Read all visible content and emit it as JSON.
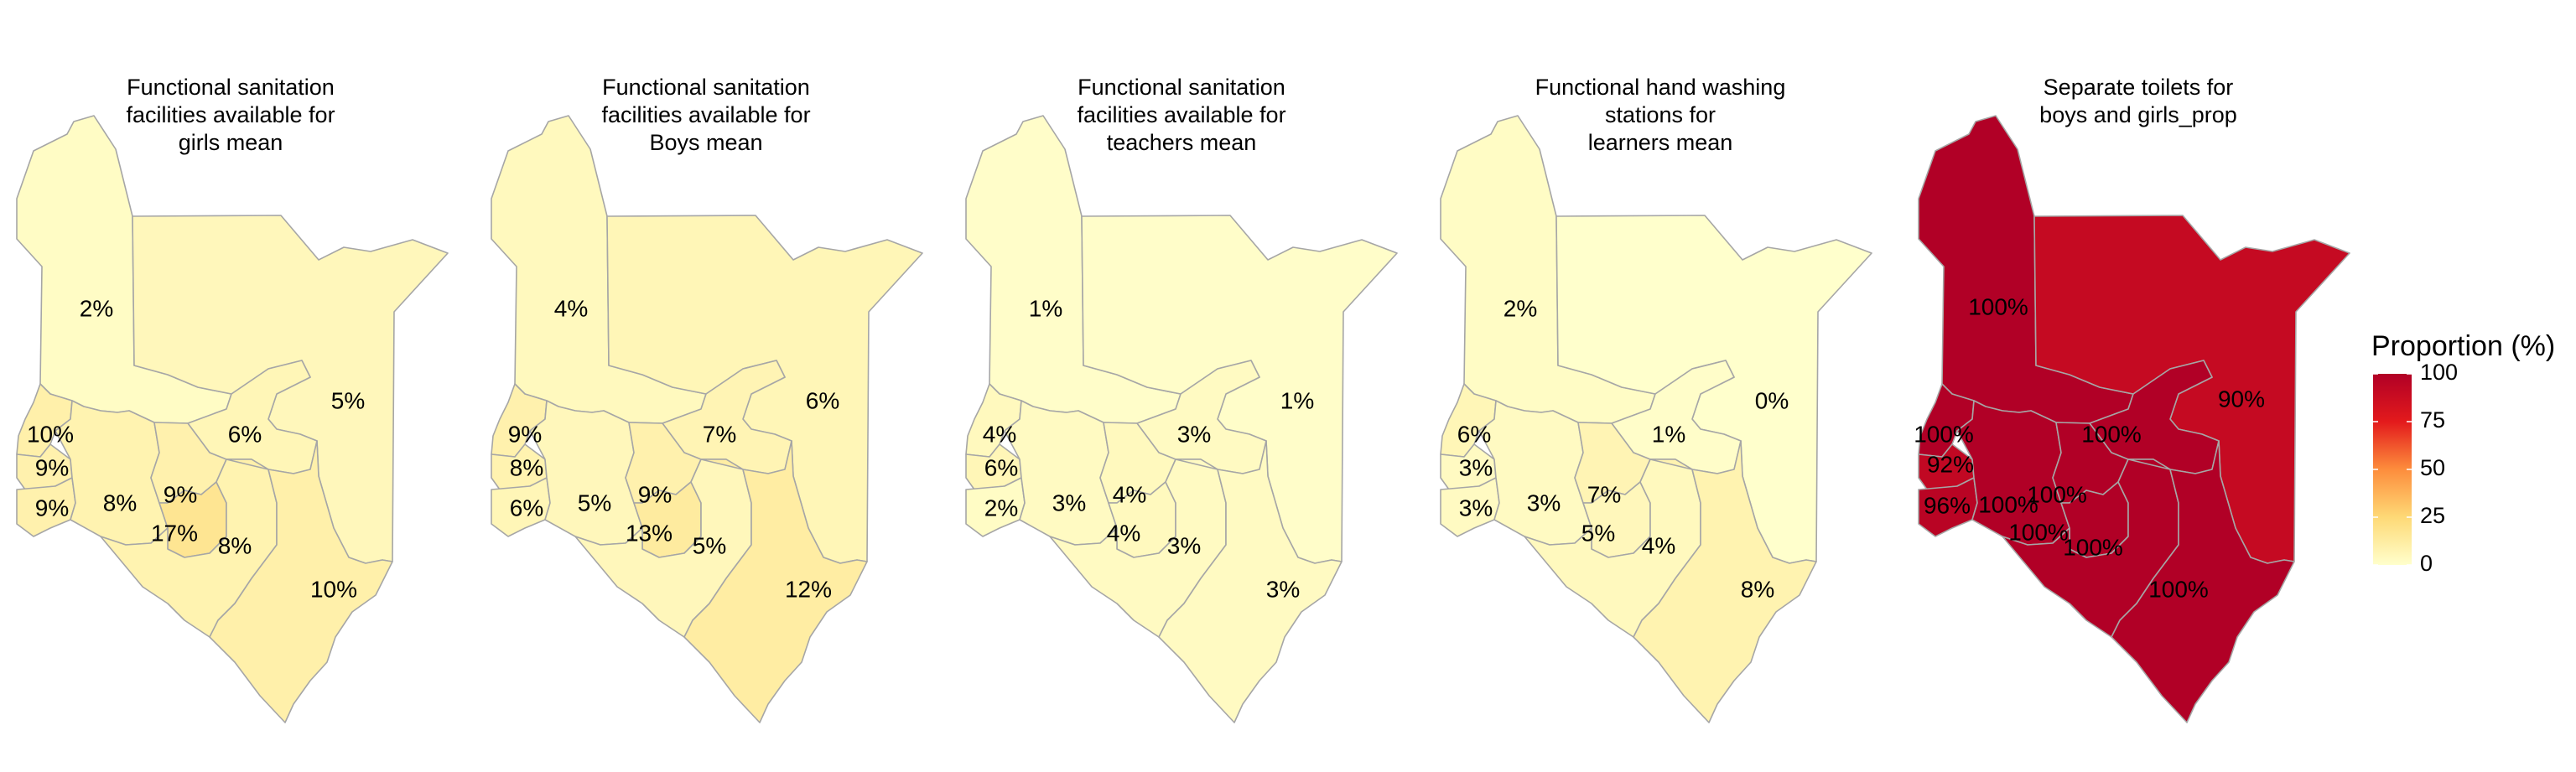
{
  "color_scale": {
    "min": 0,
    "max": 100,
    "low_color": "#FFFFCC",
    "mid_color": "#FD8D3C",
    "high_color": "#B10026",
    "border_color": "#A6A6A6"
  },
  "legend": {
    "title": "Proportion (%)",
    "ticks": [
      "100",
      "75",
      "50",
      "25",
      "0"
    ]
  },
  "maps": [
    {
      "title_lines": [
        "Functional sanitation",
        "facilities available for",
        "girls  mean"
      ],
      "regions": [
        {
          "name": "north-west",
          "value": 2,
          "label": "2%"
        },
        {
          "name": "north-east",
          "value": 5,
          "label": "5%"
        },
        {
          "name": "centre-north",
          "value": 6,
          "label": "6%"
        },
        {
          "name": "west-1",
          "value": 10,
          "label": "10%"
        },
        {
          "name": "west-2",
          "value": 9,
          "label": "9%"
        },
        {
          "name": "west-3",
          "value": 9,
          "label": "9%"
        },
        {
          "name": "west-central",
          "value": 8,
          "label": "8%"
        },
        {
          "name": "central-a",
          "value": 9,
          "label": "9%"
        },
        {
          "name": "central-b",
          "value": 17,
          "label": "17%"
        },
        {
          "name": "central-south",
          "value": 8,
          "label": "8%"
        },
        {
          "name": "south-east",
          "value": 10,
          "label": "10%"
        }
      ]
    },
    {
      "title_lines": [
        "Functional sanitation",
        "facilities available for",
        "Boys  mean"
      ],
      "regions": [
        {
          "name": "north-west",
          "value": 4,
          "label": "4%"
        },
        {
          "name": "north-east",
          "value": 6,
          "label": "6%"
        },
        {
          "name": "centre-north",
          "value": 7,
          "label": "7%"
        },
        {
          "name": "west-1",
          "value": 9,
          "label": "9%"
        },
        {
          "name": "west-2",
          "value": 8,
          "label": "8%"
        },
        {
          "name": "west-3",
          "value": 6,
          "label": "6%"
        },
        {
          "name": "west-central",
          "value": 5,
          "label": "5%"
        },
        {
          "name": "central-a",
          "value": 9,
          "label": "9%"
        },
        {
          "name": "central-b",
          "value": 13,
          "label": "13%"
        },
        {
          "name": "central-south",
          "value": 5,
          "label": "5%"
        },
        {
          "name": "south-east",
          "value": 12,
          "label": "12%"
        }
      ]
    },
    {
      "title_lines": [
        "Functional sanitation",
        "facilities available for",
        "teachers  mean"
      ],
      "regions": [
        {
          "name": "north-west",
          "value": 1,
          "label": "1%"
        },
        {
          "name": "north-east",
          "value": 1,
          "label": "1%"
        },
        {
          "name": "centre-north",
          "value": 3,
          "label": "3%"
        },
        {
          "name": "west-1",
          "value": 4,
          "label": "4%"
        },
        {
          "name": "west-2",
          "value": 6,
          "label": "6%"
        },
        {
          "name": "west-3",
          "value": 2,
          "label": "2%"
        },
        {
          "name": "west-central",
          "value": 3,
          "label": "3%"
        },
        {
          "name": "central-a",
          "value": 4,
          "label": "4%"
        },
        {
          "name": "central-b",
          "value": 4,
          "label": "4%"
        },
        {
          "name": "central-south",
          "value": 3,
          "label": "3%"
        },
        {
          "name": "south-east",
          "value": 3,
          "label": "3%"
        }
      ]
    },
    {
      "title_lines": [
        "Functional hand washing",
        "stations for",
        "learners  mean"
      ],
      "regions": [
        {
          "name": "north-west",
          "value": 2,
          "label": "2%"
        },
        {
          "name": "north-east",
          "value": 0,
          "label": "0%"
        },
        {
          "name": "centre-north",
          "value": 1,
          "label": "1%"
        },
        {
          "name": "west-1",
          "value": 6,
          "label": "6%"
        },
        {
          "name": "west-2",
          "value": 3,
          "label": "3%"
        },
        {
          "name": "west-3",
          "value": 3,
          "label": "3%"
        },
        {
          "name": "west-central",
          "value": 3,
          "label": "3%"
        },
        {
          "name": "central-a",
          "value": 7,
          "label": "7%"
        },
        {
          "name": "central-b",
          "value": 5,
          "label": "5%"
        },
        {
          "name": "central-south",
          "value": 4,
          "label": "4%"
        },
        {
          "name": "south-east",
          "value": 8,
          "label": "8%"
        }
      ]
    },
    {
      "title_lines": [
        "Separate toilets for",
        "boys and girls_prop"
      ],
      "regions": [
        {
          "name": "north-west",
          "value": 100,
          "label": "100%"
        },
        {
          "name": "north-east",
          "value": 90,
          "label": "90%"
        },
        {
          "name": "centre-north",
          "value": 100,
          "label": "100%"
        },
        {
          "name": "west-1",
          "value": 100,
          "label": "100%"
        },
        {
          "name": "west-2",
          "value": 92,
          "label": "92%"
        },
        {
          "name": "west-3",
          "value": 96,
          "label": "96%"
        },
        {
          "name": "west-central",
          "value": 100,
          "label": "100%"
        },
        {
          "name": "central-a",
          "value": 100,
          "label": "100%"
        },
        {
          "name": "central-b",
          "value": 100,
          "label": "100%"
        },
        {
          "name": "central-south",
          "value": 100,
          "label": "100%"
        },
        {
          "name": "south-east",
          "value": 100,
          "label": "100%"
        }
      ]
    }
  ]
}
